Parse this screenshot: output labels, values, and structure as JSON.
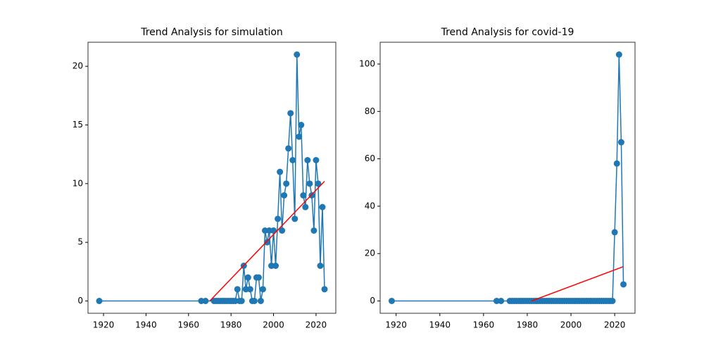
{
  "chart_data": [
    {
      "type": "line",
      "title": "Trend Analysis for simulation",
      "xlim": [
        1912.7,
        2029.3
      ],
      "xticks": [
        1920,
        1940,
        1960,
        1980,
        2000,
        2020
      ],
      "ylim": [
        -1.05,
        22.05
      ],
      "yticks": [
        0,
        5,
        10,
        15,
        20
      ],
      "series": [
        {
          "color": "#1f77b4",
          "marker": true,
          "x": [
            1918,
            1966,
            1968,
            1972,
            1973,
            1974,
            1975,
            1976,
            1977,
            1978,
            1979,
            1980,
            1981,
            1982,
            1983,
            1984,
            1985,
            1986,
            1987,
            1988,
            1989,
            1990,
            1991,
            1992,
            1993,
            1994,
            1995,
            1996,
            1997,
            1998,
            1999,
            2000,
            2001,
            2002,
            2003,
            2004,
            2005,
            2006,
            2007,
            2008,
            2009,
            2010,
            2011,
            2012,
            2013,
            2014,
            2015,
            2016,
            2017,
            2018,
            2019,
            2020,
            2021,
            2022,
            2023,
            2024
          ],
          "values": [
            0,
            0,
            0,
            0,
            0,
            0,
            0,
            0,
            0,
            0,
            0,
            0,
            0,
            0,
            1,
            0,
            0,
            3,
            1,
            2,
            1,
            0,
            0,
            2,
            2,
            0,
            1,
            6,
            5,
            6,
            3,
            6,
            3,
            7,
            11,
            6,
            9,
            10,
            13,
            16,
            12,
            7,
            21,
            14,
            15,
            9,
            8,
            12,
            10,
            9,
            6,
            12,
            10,
            3,
            8,
            1
          ]
        },
        {
          "color": "#ff0000",
          "marker": false,
          "x": [
            1970,
            2024
          ],
          "values": [
            0,
            10.2
          ]
        }
      ]
    },
    {
      "type": "line",
      "title": "Trend Analysis for covid-19",
      "xlim": [
        1912.7,
        2029.3
      ],
      "xticks": [
        1920,
        1940,
        1960,
        1980,
        2000,
        2020
      ],
      "ylim": [
        -5.2,
        109.2
      ],
      "yticks": [
        0,
        20,
        40,
        60,
        80,
        100
      ],
      "series": [
        {
          "color": "#1f77b4",
          "marker": true,
          "x": [
            1918,
            1966,
            1968,
            1972,
            1973,
            1974,
            1975,
            1976,
            1977,
            1978,
            1979,
            1980,
            1981,
            1982,
            1983,
            1984,
            1985,
            1986,
            1987,
            1988,
            1989,
            1990,
            1991,
            1992,
            1993,
            1994,
            1995,
            1996,
            1997,
            1998,
            1999,
            2000,
            2001,
            2002,
            2003,
            2004,
            2005,
            2006,
            2007,
            2008,
            2009,
            2010,
            2011,
            2012,
            2013,
            2014,
            2015,
            2016,
            2017,
            2018,
            2019,
            2020,
            2021,
            2022,
            2023,
            2024
          ],
          "values": [
            0,
            0,
            0,
            0,
            0,
            0,
            0,
            0,
            0,
            0,
            0,
            0,
            0,
            0,
            0,
            0,
            0,
            0,
            0,
            0,
            0,
            0,
            0,
            0,
            0,
            0,
            0,
            0,
            0,
            0,
            0,
            0,
            0,
            0,
            0,
            0,
            0,
            0,
            0,
            0,
            0,
            0,
            0,
            0,
            0,
            0,
            0,
            0,
            0,
            0,
            0,
            29,
            58,
            104,
            67,
            7
          ]
        },
        {
          "color": "#ff0000",
          "marker": false,
          "x": [
            1982,
            2024
          ],
          "values": [
            0,
            14.5
          ]
        }
      ]
    }
  ]
}
